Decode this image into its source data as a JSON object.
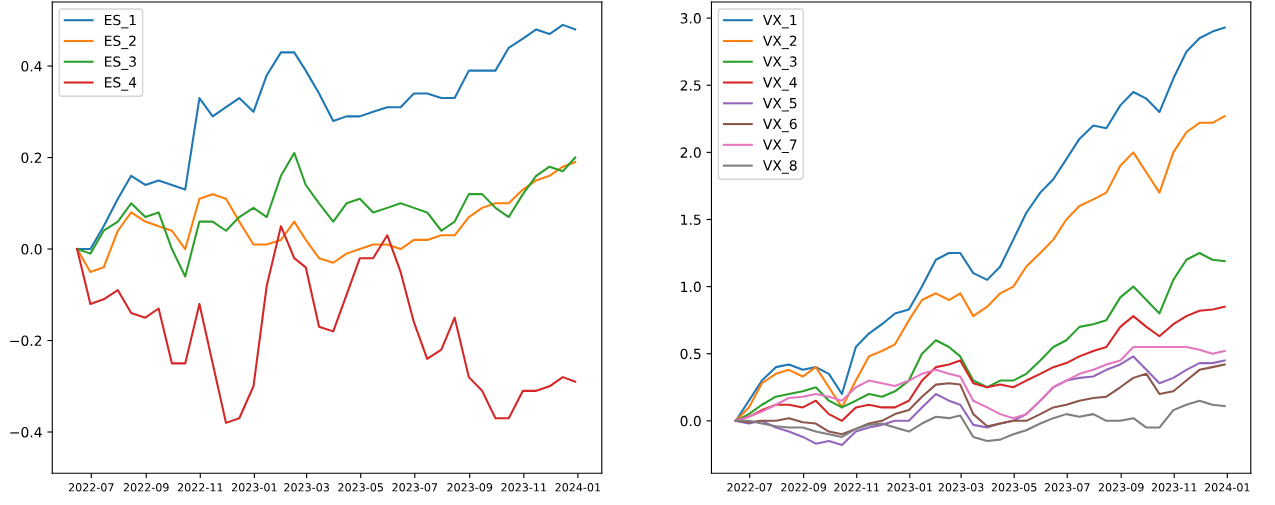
{
  "chart_data": [
    {
      "type": "line",
      "legend": "top left",
      "grid": false,
      "x": [
        "2022-06-15",
        "2022-06-30",
        "2022-07-15",
        "2022-07-31",
        "2022-08-15",
        "2022-08-31",
        "2022-09-15",
        "2022-09-30",
        "2022-10-15",
        "2022-10-31",
        "2022-11-15",
        "2022-11-30",
        "2022-12-15",
        "2022-12-31",
        "2023-01-15",
        "2023-01-31",
        "2023-02-15",
        "2023-02-28",
        "2023-03-15",
        "2023-03-31",
        "2023-04-15",
        "2023-04-30",
        "2023-05-15",
        "2023-05-31",
        "2023-06-15",
        "2023-06-30",
        "2023-07-15",
        "2023-07-31",
        "2023-08-15",
        "2023-08-31",
        "2023-09-15",
        "2023-09-30",
        "2023-10-15",
        "2023-10-31",
        "2023-11-15",
        "2023-11-30",
        "2023-12-15",
        "2023-12-29"
      ],
      "xlim": [
        "2022-05-18",
        "2024-01-28"
      ],
      "xticks": [
        {
          "value": "2022-07-01",
          "label": "2022-07"
        },
        {
          "value": "2022-09-01",
          "label": "2022-09"
        },
        {
          "value": "2022-11-01",
          "label": "2022-11"
        },
        {
          "value": "2023-01-01",
          "label": "2023-01"
        },
        {
          "value": "2023-03-01",
          "label": "2023-03"
        },
        {
          "value": "2023-05-01",
          "label": "2023-05"
        },
        {
          "value": "2023-07-01",
          "label": "2023-07"
        },
        {
          "value": "2023-09-01",
          "label": "2023-09"
        },
        {
          "value": "2023-11-01",
          "label": "2023-11"
        },
        {
          "value": "2024-01-01",
          "label": "2024-01"
        }
      ],
      "ylim": [
        -0.49,
        0.54
      ],
      "yticks": [
        {
          "value": -0.4,
          "label": "−0.4"
        },
        {
          "value": -0.2,
          "label": "−0.2"
        },
        {
          "value": 0,
          "label": "0.0"
        },
        {
          "value": 0.2,
          "label": "0.2"
        },
        {
          "value": 0.4,
          "label": "0.4"
        }
      ],
      "series": [
        {
          "name": "ES_1",
          "color": "#1f77b4",
          "values": [
            0,
            0.0,
            0.05,
            0.11,
            0.16,
            0.14,
            0.15,
            0.14,
            0.13,
            0.33,
            0.29,
            0.31,
            0.33,
            0.3,
            0.38,
            0.43,
            0.43,
            0.39,
            0.34,
            0.28,
            0.29,
            0.29,
            0.3,
            0.31,
            0.31,
            0.34,
            0.34,
            0.33,
            0.33,
            0.39,
            0.39,
            0.39,
            0.44,
            0.46,
            0.48,
            0.47,
            0.49,
            0.48
          ]
        },
        {
          "name": "ES_2",
          "color": "#ff7f0e",
          "values": [
            0,
            -0.05,
            -0.04,
            0.04,
            0.08,
            0.06,
            0.05,
            0.04,
            0.0,
            0.11,
            0.12,
            0.11,
            0.06,
            0.01,
            0.01,
            0.02,
            0.06,
            0.02,
            -0.02,
            -0.03,
            -0.01,
            0.0,
            0.01,
            0.01,
            0.0,
            0.02,
            0.02,
            0.03,
            0.03,
            0.07,
            0.09,
            0.1,
            0.1,
            0.13,
            0.15,
            0.16,
            0.18,
            0.19
          ]
        },
        {
          "name": "ES_3",
          "color": "#2ca02c",
          "values": [
            0,
            -0.01,
            0.04,
            0.06,
            0.1,
            0.07,
            0.08,
            0.0,
            -0.06,
            0.06,
            0.06,
            0.04,
            0.07,
            0.09,
            0.07,
            0.16,
            0.21,
            0.14,
            0.1,
            0.06,
            0.1,
            0.11,
            0.08,
            0.09,
            0.1,
            0.09,
            0.08,
            0.04,
            0.06,
            0.12,
            0.12,
            0.09,
            0.07,
            0.12,
            0.16,
            0.18,
            0.17,
            0.2
          ]
        },
        {
          "name": "ES_4",
          "color": "#d62728",
          "values": [
            0,
            -0.12,
            -0.11,
            -0.09,
            -0.14,
            -0.15,
            -0.13,
            -0.25,
            -0.25,
            -0.12,
            -0.25,
            -0.38,
            -0.37,
            -0.3,
            -0.08,
            0.05,
            -0.02,
            -0.04,
            -0.17,
            -0.18,
            -0.1,
            -0.02,
            -0.02,
            0.03,
            -0.05,
            -0.16,
            -0.24,
            -0.22,
            -0.15,
            -0.28,
            -0.31,
            -0.37,
            -0.37,
            -0.31,
            -0.31,
            -0.3,
            -0.28,
            -0.29
          ]
        }
      ]
    },
    {
      "type": "line",
      "legend": "top left",
      "grid": false,
      "x": [
        "2022-06-15",
        "2022-06-30",
        "2022-07-15",
        "2022-07-31",
        "2022-08-15",
        "2022-08-31",
        "2022-09-15",
        "2022-09-30",
        "2022-10-15",
        "2022-10-31",
        "2022-11-15",
        "2022-11-30",
        "2022-12-15",
        "2022-12-31",
        "2023-01-15",
        "2023-01-31",
        "2023-02-15",
        "2023-02-28",
        "2023-03-15",
        "2023-03-31",
        "2023-04-15",
        "2023-04-30",
        "2023-05-15",
        "2023-05-31",
        "2023-06-15",
        "2023-06-30",
        "2023-07-15",
        "2023-07-31",
        "2023-08-15",
        "2023-08-31",
        "2023-09-15",
        "2023-09-30",
        "2023-10-15",
        "2023-10-31",
        "2023-11-15",
        "2023-11-30",
        "2023-12-15",
        "2023-12-29"
      ],
      "xlim": [
        "2022-05-18",
        "2024-01-28"
      ],
      "xticks": [
        {
          "value": "2022-07-01",
          "label": "2022-07"
        },
        {
          "value": "2022-09-01",
          "label": "2022-09"
        },
        {
          "value": "2022-11-01",
          "label": "2022-11"
        },
        {
          "value": "2023-01-01",
          "label": "2023-01"
        },
        {
          "value": "2023-03-01",
          "label": "2023-03"
        },
        {
          "value": "2023-05-01",
          "label": "2023-05"
        },
        {
          "value": "2023-07-01",
          "label": "2023-07"
        },
        {
          "value": "2023-09-01",
          "label": "2023-09"
        },
        {
          "value": "2023-11-01",
          "label": "2023-11"
        },
        {
          "value": "2024-01-01",
          "label": "2024-01"
        }
      ],
      "ylim": [
        -0.39,
        3.12
      ],
      "yticks": [
        {
          "value": 0,
          "label": "0.0"
        },
        {
          "value": 0.5,
          "label": "0.5"
        },
        {
          "value": 1,
          "label": "1.0"
        },
        {
          "value": 1.5,
          "label": "1.5"
        },
        {
          "value": 2,
          "label": "2.0"
        },
        {
          "value": 2.5,
          "label": "2.5"
        },
        {
          "value": 3,
          "label": "3.0"
        }
      ],
      "series": [
        {
          "name": "VX_1",
          "color": "#1f77b4",
          "values": [
            0,
            0.15,
            0.3,
            0.4,
            0.42,
            0.38,
            0.4,
            0.35,
            0.2,
            0.55,
            0.65,
            0.72,
            0.8,
            0.83,
            1.0,
            1.2,
            1.25,
            1.25,
            1.1,
            1.05,
            1.15,
            1.35,
            1.55,
            1.7,
            1.8,
            1.95,
            2.1,
            2.2,
            2.18,
            2.35,
            2.45,
            2.4,
            2.3,
            2.55,
            2.75,
            2.85,
            2.9,
            2.93
          ]
        },
        {
          "name": "VX_2",
          "color": "#ff7f0e",
          "values": [
            0,
            0.1,
            0.28,
            0.35,
            0.38,
            0.33,
            0.4,
            0.25,
            0.1,
            0.3,
            0.48,
            0.52,
            0.57,
            0.75,
            0.9,
            0.95,
            0.9,
            0.95,
            0.78,
            0.85,
            0.95,
            1.0,
            1.15,
            1.25,
            1.35,
            1.5,
            1.6,
            1.65,
            1.7,
            1.9,
            2.0,
            1.85,
            1.7,
            2.0,
            2.15,
            2.22,
            2.22,
            2.27
          ]
        },
        {
          "name": "VX_3",
          "color": "#2ca02c",
          "values": [
            0,
            0.05,
            0.12,
            0.18,
            0.2,
            0.22,
            0.25,
            0.15,
            0.1,
            0.15,
            0.2,
            0.18,
            0.22,
            0.3,
            0.5,
            0.6,
            0.55,
            0.48,
            0.3,
            0.25,
            0.3,
            0.3,
            0.35,
            0.45,
            0.55,
            0.6,
            0.7,
            0.72,
            0.75,
            0.92,
            1.0,
            0.9,
            0.8,
            1.05,
            1.2,
            1.25,
            1.2,
            1.19
          ]
        },
        {
          "name": "VX_4",
          "color": "#d62728",
          "values": [
            0,
            0.03,
            0.08,
            0.12,
            0.12,
            0.1,
            0.15,
            0.05,
            0.0,
            0.1,
            0.12,
            0.1,
            0.1,
            0.15,
            0.3,
            0.4,
            0.42,
            0.45,
            0.28,
            0.25,
            0.27,
            0.25,
            0.3,
            0.35,
            0.4,
            0.43,
            0.48,
            0.52,
            0.55,
            0.7,
            0.78,
            0.7,
            0.63,
            0.72,
            0.78,
            0.82,
            0.83,
            0.85
          ]
        },
        {
          "name": "VX_5",
          "color": "#9467bd",
          "values": [
            0,
            -0.02,
            0.0,
            -0.05,
            -0.08,
            -0.12,
            -0.17,
            -0.15,
            -0.18,
            -0.08,
            -0.05,
            -0.03,
            0.0,
            0.0,
            0.1,
            0.2,
            0.15,
            0.12,
            -0.03,
            -0.05,
            -0.02,
            0.0,
            0.05,
            0.15,
            0.25,
            0.3,
            0.32,
            0.33,
            0.38,
            0.42,
            0.48,
            0.38,
            0.28,
            0.32,
            0.38,
            0.43,
            0.43,
            0.45
          ]
        },
        {
          "name": "VX_6",
          "color": "#8c564b",
          "values": [
            0,
            -0.01,
            0.0,
            0.0,
            0.02,
            -0.01,
            -0.02,
            -0.08,
            -0.1,
            -0.06,
            -0.02,
            0.0,
            0.05,
            0.08,
            0.18,
            0.27,
            0.28,
            0.27,
            0.05,
            -0.04,
            -0.02,
            0.0,
            0.0,
            0.05,
            0.1,
            0.12,
            0.15,
            0.17,
            0.18,
            0.25,
            0.32,
            0.35,
            0.2,
            0.22,
            0.3,
            0.38,
            0.4,
            0.42
          ]
        },
        {
          "name": "VX_7",
          "color": "#e377c2",
          "values": [
            0,
            0.03,
            0.07,
            0.12,
            0.17,
            0.18,
            0.2,
            0.18,
            0.15,
            0.25,
            0.3,
            0.28,
            0.26,
            0.3,
            0.35,
            0.38,
            0.35,
            0.33,
            0.15,
            0.1,
            0.05,
            0.02,
            0.05,
            0.15,
            0.25,
            0.3,
            0.35,
            0.38,
            0.42,
            0.45,
            0.55,
            0.55,
            0.55,
            0.55,
            0.55,
            0.53,
            0.5,
            0.52
          ]
        },
        {
          "name": "VX_8",
          "color": "#7f7f7f",
          "values": [
            0,
            0.0,
            -0.02,
            -0.04,
            -0.05,
            -0.05,
            -0.08,
            -0.1,
            -0.12,
            -0.06,
            -0.03,
            -0.02,
            -0.05,
            -0.08,
            -0.02,
            0.03,
            0.02,
            0.04,
            -0.12,
            -0.15,
            -0.14,
            -0.1,
            -0.07,
            -0.02,
            0.02,
            0.05,
            0.03,
            0.05,
            0.0,
            0.0,
            0.02,
            -0.05,
            -0.05,
            0.08,
            0.12,
            0.15,
            0.12,
            0.11
          ]
        }
      ]
    }
  ]
}
